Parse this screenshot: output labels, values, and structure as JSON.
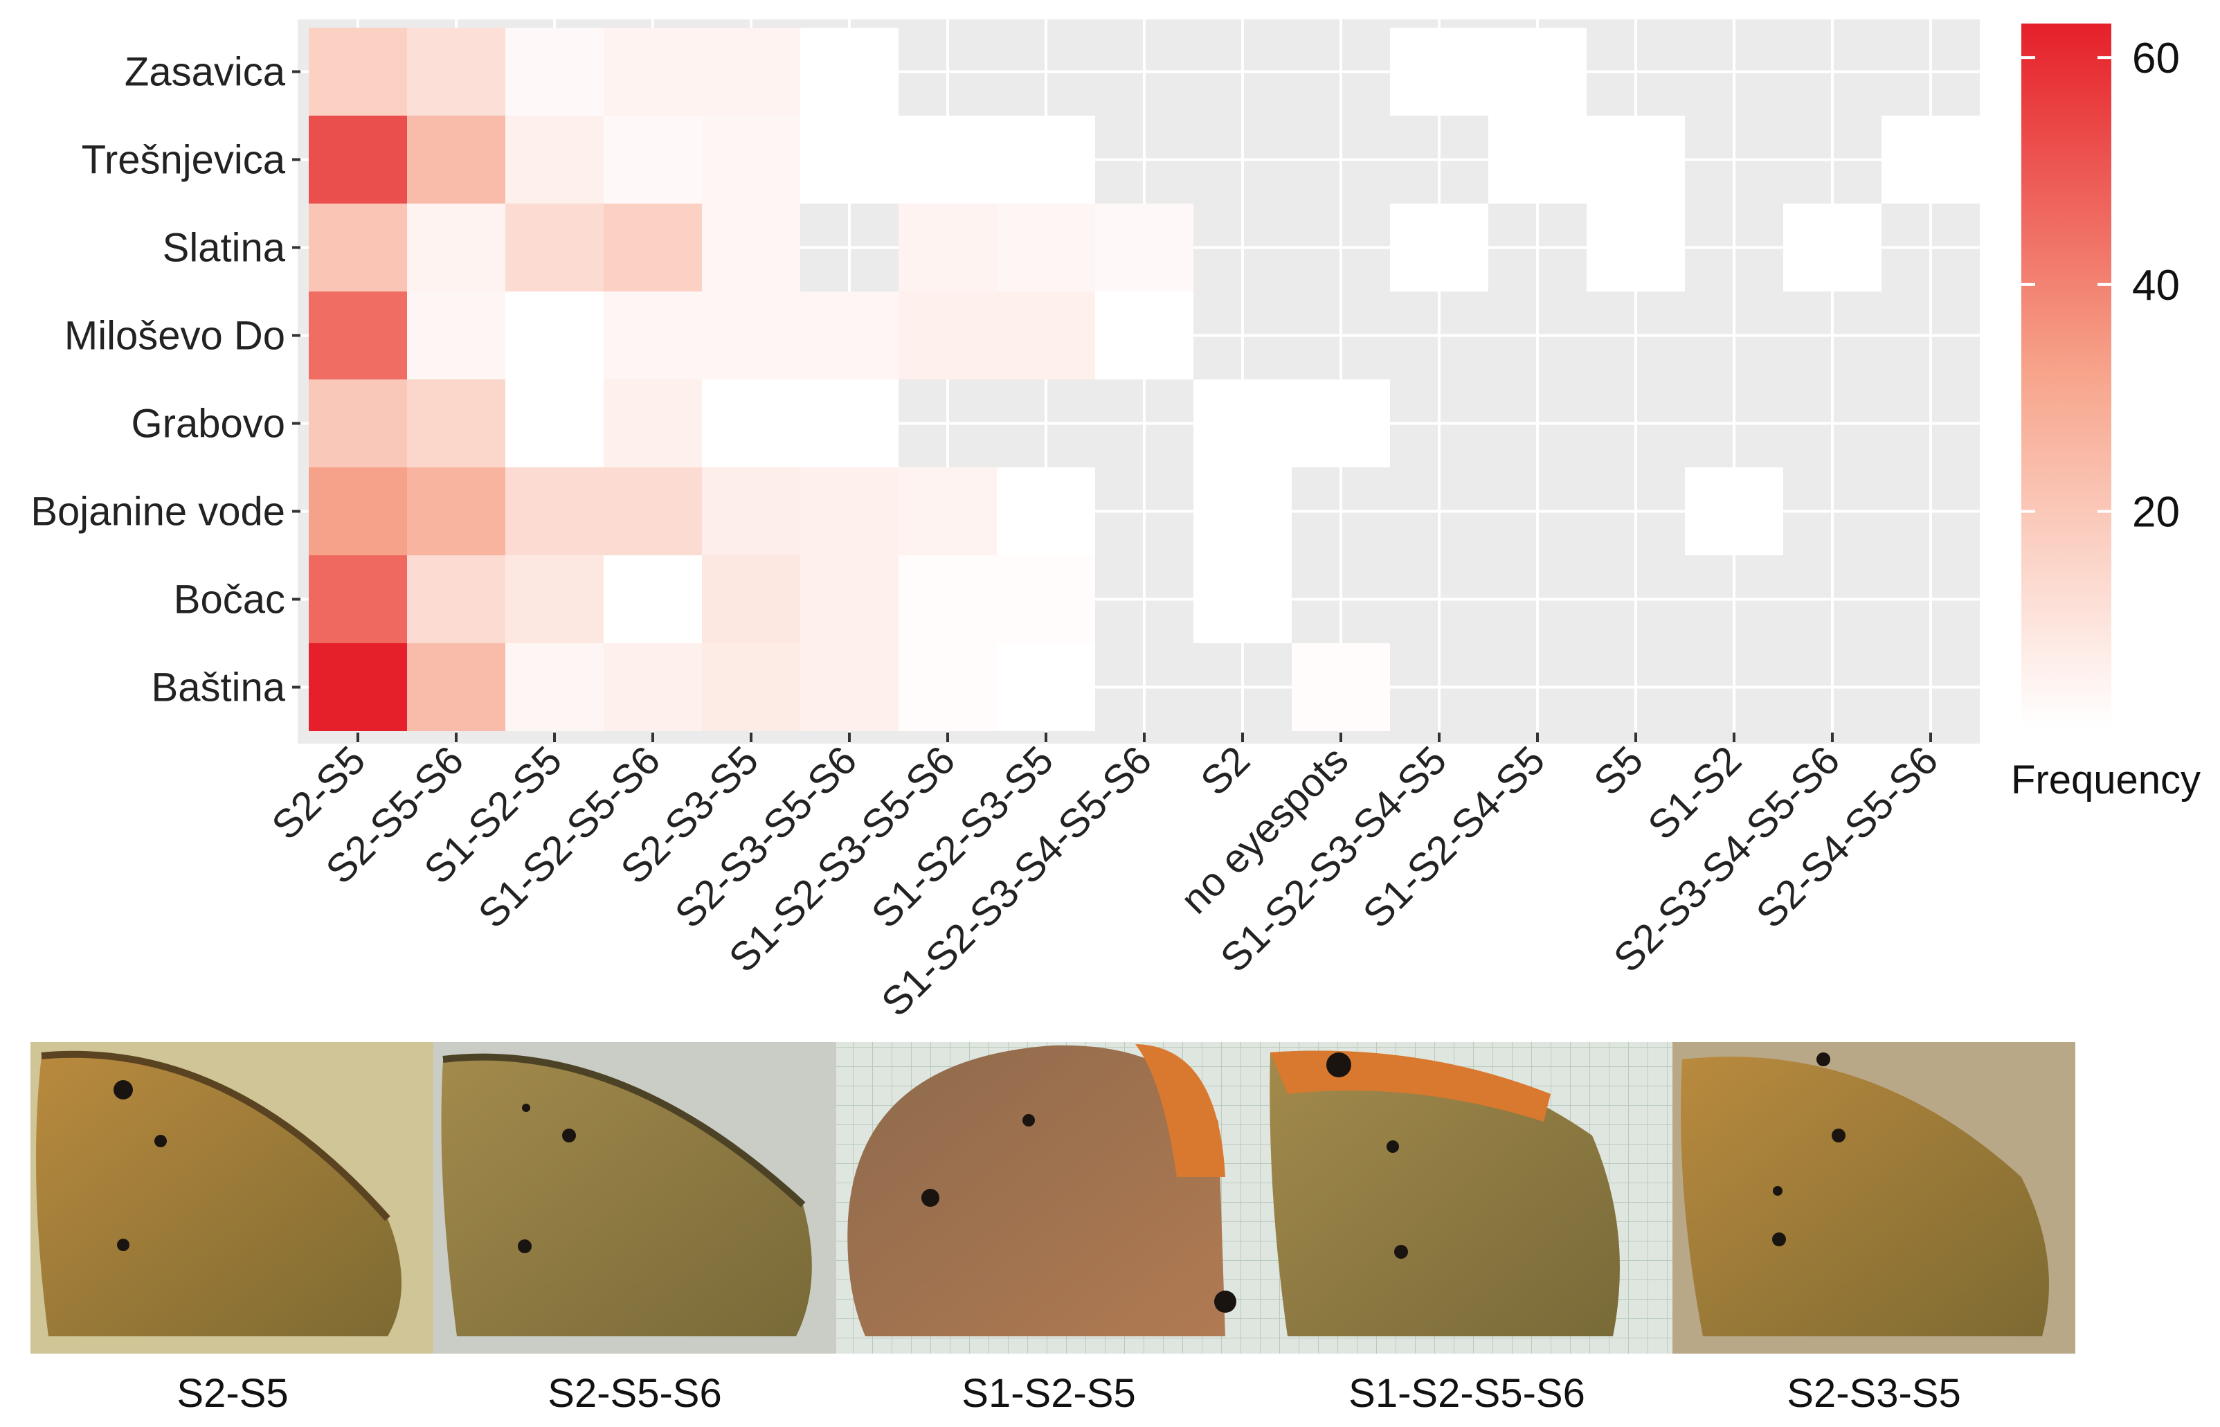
{
  "chart_data": {
    "type": "heatmap",
    "title": "",
    "xlabel": "",
    "ylabel": "",
    "rows": [
      "Zasavica",
      "Trešnjevica",
      "Slatina",
      "Miloševo Do",
      "Grabovo",
      "Bojanine vode",
      "Bočac",
      "Baština"
    ],
    "columns": [
      "S2-S5",
      "S2-S5-S6",
      "S1-S2-S5",
      "S1-S2-S5-S6",
      "S2-S3-S5",
      "S2-S3-S5-S6",
      "S1-S2-S3-S5-S6",
      "S1-S2-S3-S5",
      "S1-S2-S3-S4-S5-S6",
      "S2",
      "no eyespots",
      "S1-S2-S3-S4-S5",
      "S1-S2-S4-S5",
      "S5",
      "S1-S2",
      "S2-S3-S4-S5-S6",
      "S2-S4-S5-S6"
    ],
    "values": [
      [
        17,
        12,
        3,
        5,
        5,
        1,
        null,
        null,
        null,
        null,
        null,
        1,
        1,
        null,
        null,
        null,
        null
      ],
      [
        52,
        24,
        6,
        3,
        4,
        1,
        1,
        1,
        null,
        null,
        null,
        null,
        1,
        1,
        null,
        null,
        1
      ],
      [
        21,
        5,
        13,
        17,
        4,
        null,
        5,
        4,
        3,
        null,
        null,
        1,
        null,
        1,
        null,
        1,
        null
      ],
      [
        45,
        4,
        1,
        4,
        4,
        4,
        6,
        6,
        1,
        null,
        null,
        null,
        null,
        null,
        null,
        null,
        null
      ],
      [
        20,
        15,
        1,
        6,
        1,
        1,
        null,
        null,
        null,
        1,
        1,
        null,
        null,
        null,
        null,
        null,
        null
      ],
      [
        33,
        27,
        13,
        13,
        7,
        6,
        5,
        1,
        null,
        1,
        null,
        null,
        null,
        null,
        1,
        null,
        null
      ],
      [
        46,
        13,
        9,
        1,
        9,
        6,
        2,
        2,
        null,
        1,
        null,
        null,
        null,
        null,
        null,
        null,
        null
      ],
      [
        63,
        24,
        4,
        6,
        8,
        6,
        2,
        1,
        null,
        null,
        2,
        null,
        null,
        null,
        null,
        null,
        null
      ]
    ],
    "color_scale": {
      "min": 1,
      "max": 63,
      "low_color": "#ffffff",
      "mid_color": "#f7a58c",
      "high_color": "#e5202a",
      "na_color": "#ebebeb",
      "ticks": [
        20,
        40,
        60
      ]
    },
    "legend": {
      "title": "Frequency",
      "position": "right"
    },
    "grid": true
  },
  "photos": {
    "labels": [
      "S2-S5",
      "S2-S5-S6",
      "S1-S2-S5",
      "S1-S2-S5-S6",
      "S2-S3-S5"
    ]
  }
}
